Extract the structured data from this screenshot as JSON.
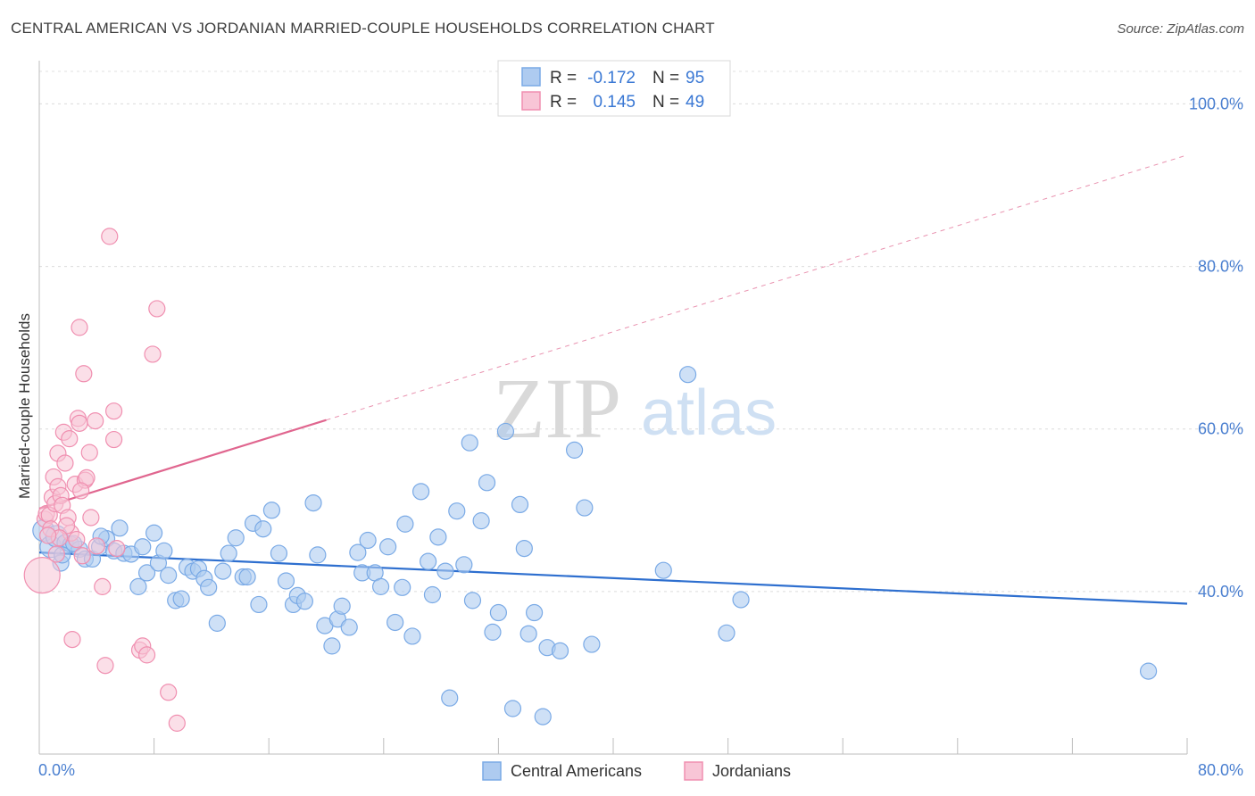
{
  "title": "CENTRAL AMERICAN VS JORDANIAN MARRIED-COUPLE HOUSEHOLDS CORRELATION CHART",
  "source": "Source: ZipAtlas.com",
  "watermark": {
    "zip": "ZIP",
    "atlas": "atlas"
  },
  "legend_top": {
    "r_label": "R =",
    "n_label": "N =",
    "rows": [
      {
        "r": "-0.172",
        "n": "95"
      },
      {
        "r": "0.145",
        "n": "49"
      }
    ]
  },
  "chart_data": {
    "type": "scatter",
    "title": "CENTRAL AMERICAN VS JORDANIAN MARRIED-COUPLE HOUSEHOLDS CORRELATION CHART",
    "xlabel": "",
    "ylabel": "Married-couple Households",
    "xlim": [
      0,
      80
    ],
    "ylim": [
      20,
      104
    ],
    "x_tick_labels": [
      "0.0%",
      "80.0%"
    ],
    "y_ticks": [
      40,
      60,
      80,
      100
    ],
    "y_tick_labels": [
      "40.0%",
      "60.0%",
      "80.0%",
      "100.0%"
    ],
    "colors": {
      "central": "#7aaae6",
      "central_fill": "#aecbf0",
      "jordan": "#f08fb0",
      "jordan_fill": "#f8c5d6",
      "central_line": "#2e6fcf",
      "jordan_line": "#e0668f"
    },
    "series": [
      {
        "name": "Central Americans",
        "trend": {
          "x": [
            0,
            80
          ],
          "y": [
            44.8,
            38.5
          ]
        },
        "points": [
          [
            0.3,
            47.5
          ],
          [
            0.8,
            45.5
          ],
          [
            1.2,
            46.8
          ],
          [
            1.5,
            43.5
          ],
          [
            1.8,
            46.0
          ],
          [
            2.2,
            45.8
          ],
          [
            2.8,
            45.2
          ],
          [
            3.2,
            44.0
          ],
          [
            3.7,
            44.0
          ],
          [
            4.2,
            45.5
          ],
          [
            4.7,
            46.5
          ],
          [
            5.2,
            45.0
          ],
          [
            5.6,
            47.8
          ],
          [
            5.9,
            44.7
          ],
          [
            6.4,
            44.6
          ],
          [
            6.9,
            40.6
          ],
          [
            7.2,
            45.5
          ],
          [
            7.5,
            42.3
          ],
          [
            8.0,
            47.2
          ],
          [
            8.3,
            43.5
          ],
          [
            8.7,
            45.0
          ],
          [
            9.0,
            42.0
          ],
          [
            9.5,
            38.9
          ],
          [
            9.9,
            39.1
          ],
          [
            10.3,
            43.0
          ],
          [
            10.7,
            42.5
          ],
          [
            11.1,
            42.8
          ],
          [
            11.5,
            41.6
          ],
          [
            11.8,
            40.5
          ],
          [
            12.4,
            36.1
          ],
          [
            12.8,
            42.5
          ],
          [
            13.2,
            44.7
          ],
          [
            13.7,
            46.6
          ],
          [
            14.2,
            41.8
          ],
          [
            14.5,
            41.8
          ],
          [
            14.9,
            48.4
          ],
          [
            15.3,
            38.4
          ],
          [
            15.6,
            47.7
          ],
          [
            16.2,
            50.0
          ],
          [
            16.7,
            44.7
          ],
          [
            17.2,
            41.3
          ],
          [
            17.7,
            38.4
          ],
          [
            18.0,
            39.5
          ],
          [
            18.5,
            38.8
          ],
          [
            19.1,
            50.9
          ],
          [
            19.4,
            44.5
          ],
          [
            19.9,
            35.8
          ],
          [
            20.4,
            33.3
          ],
          [
            20.8,
            36.6
          ],
          [
            21.1,
            38.2
          ],
          [
            21.6,
            35.6
          ],
          [
            22.2,
            44.8
          ],
          [
            22.5,
            42.3
          ],
          [
            22.9,
            46.3
          ],
          [
            23.4,
            42.3
          ],
          [
            23.8,
            40.6
          ],
          [
            24.3,
            45.5
          ],
          [
            24.8,
            36.2
          ],
          [
            25.3,
            40.5
          ],
          [
            25.5,
            48.3
          ],
          [
            26.0,
            34.5
          ],
          [
            26.6,
            52.3
          ],
          [
            27.1,
            43.7
          ],
          [
            27.4,
            39.6
          ],
          [
            27.8,
            46.7
          ],
          [
            28.3,
            42.5
          ],
          [
            28.6,
            26.9
          ],
          [
            29.1,
            49.9
          ],
          [
            29.6,
            43.3
          ],
          [
            30.0,
            58.3
          ],
          [
            30.2,
            38.9
          ],
          [
            30.8,
            48.7
          ],
          [
            31.2,
            53.4
          ],
          [
            31.6,
            35.0
          ],
          [
            32.0,
            37.4
          ],
          [
            32.5,
            59.7
          ],
          [
            33.0,
            25.6
          ],
          [
            33.5,
            50.7
          ],
          [
            33.8,
            45.3
          ],
          [
            34.1,
            34.8
          ],
          [
            34.5,
            37.4
          ],
          [
            35.1,
            24.6
          ],
          [
            35.4,
            33.1
          ],
          [
            36.3,
            32.7
          ],
          [
            37.3,
            57.4
          ],
          [
            38.0,
            50.3
          ],
          [
            38.5,
            33.5
          ],
          [
            43.5,
            42.6
          ],
          [
            45.2,
            66.7
          ],
          [
            47.9,
            34.9
          ],
          [
            48.9,
            39.0
          ],
          [
            77.3,
            30.2
          ],
          [
            2.4,
            45.9
          ],
          [
            4.3,
            46.8
          ],
          [
            1.6,
            44.5
          ]
        ]
      },
      {
        "name": "Jordanians",
        "trend": {
          "x": [
            0,
            20
          ],
          "y": [
            50.2,
            61.1
          ]
        },
        "trend_dashed": {
          "x": [
            20,
            80
          ],
          "y": [
            61.1,
            93.7
          ]
        },
        "points": [
          [
            0.2,
            42.0
          ],
          [
            0.4,
            48.9
          ],
          [
            0.5,
            49.6
          ],
          [
            0.7,
            49.4
          ],
          [
            0.9,
            51.6
          ],
          [
            1.0,
            54.1
          ],
          [
            1.1,
            50.8
          ],
          [
            1.3,
            52.9
          ],
          [
            1.3,
            57.0
          ],
          [
            1.5,
            51.8
          ],
          [
            1.6,
            50.6
          ],
          [
            1.7,
            59.6
          ],
          [
            1.8,
            55.8
          ],
          [
            2.0,
            49.1
          ],
          [
            2.1,
            58.8
          ],
          [
            2.2,
            47.2
          ],
          [
            2.5,
            53.2
          ],
          [
            2.6,
            46.4
          ],
          [
            2.7,
            61.3
          ],
          [
            2.8,
            60.7
          ],
          [
            2.8,
            72.5
          ],
          [
            3.1,
            66.8
          ],
          [
            3.2,
            53.7
          ],
          [
            3.3,
            54.0
          ],
          [
            3.5,
            57.1
          ],
          [
            3.6,
            49.1
          ],
          [
            3.9,
            61.0
          ],
          [
            4.0,
            45.6
          ],
          [
            4.4,
            40.6
          ],
          [
            4.6,
            30.9
          ],
          [
            4.9,
            83.7
          ],
          [
            5.2,
            58.7
          ],
          [
            5.2,
            62.2
          ],
          [
            5.4,
            45.3
          ],
          [
            7.0,
            32.8
          ],
          [
            7.2,
            33.3
          ],
          [
            7.5,
            32.2
          ],
          [
            7.9,
            69.2
          ],
          [
            8.2,
            74.8
          ],
          [
            9.0,
            27.6
          ],
          [
            9.6,
            23.8
          ],
          [
            1.9,
            48.1
          ],
          [
            2.3,
            34.1
          ],
          [
            0.8,
            47.7
          ],
          [
            1.4,
            46.6
          ],
          [
            1.2,
            44.6
          ],
          [
            3.0,
            44.4
          ],
          [
            0.6,
            46.9
          ],
          [
            2.9,
            52.4
          ]
        ]
      }
    ]
  },
  "legend_bottom": [
    "Central Americans",
    "Jordanians"
  ]
}
